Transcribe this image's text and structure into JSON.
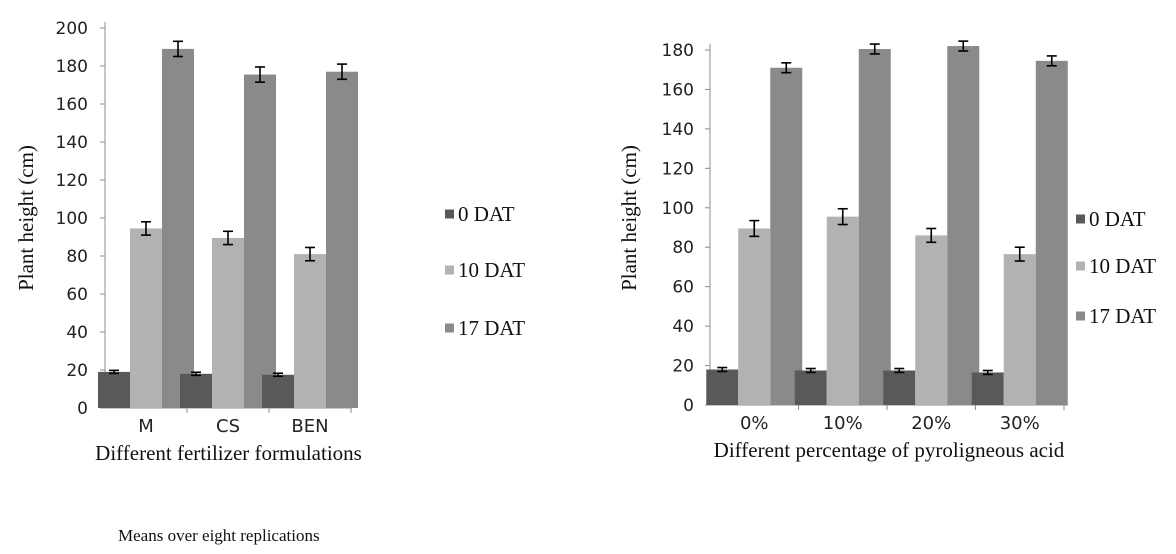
{
  "footnote": "Means over eight replications",
  "chart_data": [
    {
      "type": "bar",
      "xlabel": "Different fertilizer formulations",
      "ylabel": "Plant height (cm)",
      "categories": [
        "M",
        "CS",
        "BEN"
      ],
      "ylim": [
        0,
        200
      ],
      "yticks": [
        0,
        20,
        40,
        60,
        80,
        100,
        120,
        140,
        160,
        180,
        200
      ],
      "grid": false,
      "legend_position": "right",
      "series": [
        {
          "name": "0 DAT",
          "color": "#595959",
          "values": [
            19,
            18,
            17.5
          ],
          "errors": [
            0.8,
            0.8,
            0.8
          ]
        },
        {
          "name": "10 DAT",
          "color": "#b2b2b2",
          "values": [
            94.5,
            89.5,
            81
          ],
          "errors": [
            3.5,
            3.5,
            3.5
          ]
        },
        {
          "name": "17 DAT",
          "color": "#8a8a8a",
          "values": [
            189,
            175.5,
            177
          ],
          "errors": [
            4,
            4,
            4
          ]
        }
      ]
    },
    {
      "type": "bar",
      "xlabel": "Different percentage of pyroligneous acid",
      "ylabel": "Plant height (cm)",
      "categories": [
        "0%",
        "10%",
        "20%",
        "30%"
      ],
      "ylim": [
        0,
        180
      ],
      "yticks": [
        0,
        20,
        40,
        60,
        80,
        100,
        120,
        140,
        160,
        180
      ],
      "grid": false,
      "legend_position": "right",
      "series": [
        {
          "name": "0 DAT",
          "color": "#595959",
          "values": [
            18,
            17.5,
            17.5,
            16.5
          ],
          "errors": [
            1,
            1,
            1,
            1
          ]
        },
        {
          "name": "10 DAT",
          "color": "#b2b2b2",
          "values": [
            89.5,
            95.5,
            86,
            76.5
          ],
          "errors": [
            4,
            4,
            3.5,
            3.5
          ]
        },
        {
          "name": "17 DAT",
          "color": "#8a8a8a",
          "values": [
            171,
            180.5,
            182,
            174.5
          ],
          "errors": [
            2.5,
            2.5,
            2.5,
            2.5
          ]
        }
      ]
    }
  ]
}
